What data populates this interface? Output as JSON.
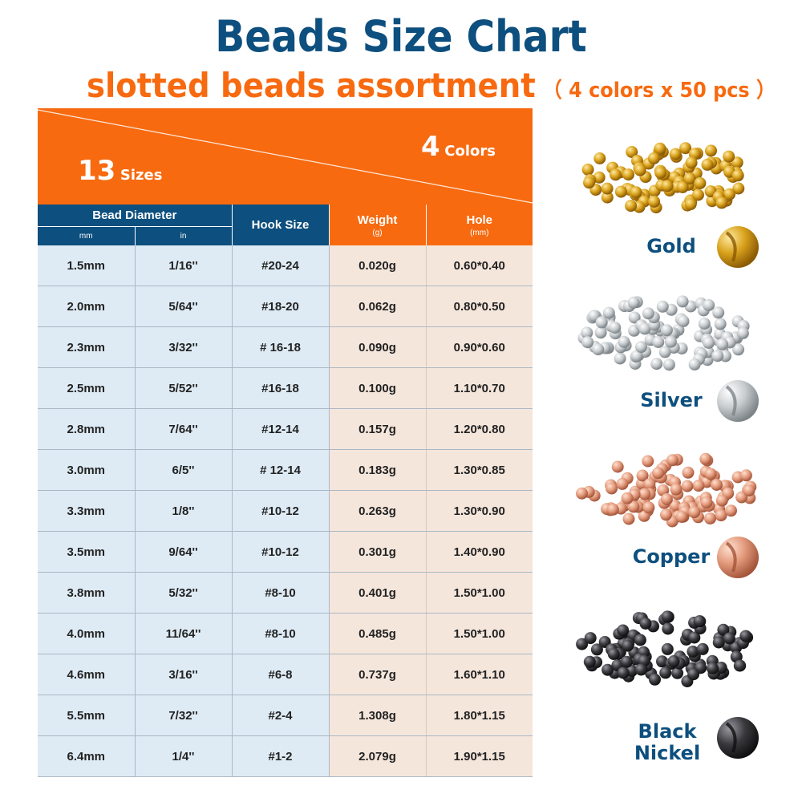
{
  "header": {
    "title": "Beads Size Chart",
    "subtitle": "slotted beads assortment",
    "subtitle_note": "（ 4 colors x 50 pcs ）"
  },
  "banner": {
    "sizes_count": "13",
    "sizes_label": "Sizes",
    "colors_count": "4",
    "colors_label": "Colors"
  },
  "table": {
    "bead_diameter_header": "Bead Diameter",
    "mm_header": "mm",
    "in_header": "in",
    "hook_size_header": "Hook Size",
    "weight_header": "Weight",
    "weight_unit": "(g)",
    "hole_header": "Hole",
    "hole_unit": "(mm)",
    "rows": [
      {
        "mm": "1.5mm",
        "in": "1/16''",
        "hook": "#20-24",
        "weight": "0.020g",
        "hole": "0.60*0.40"
      },
      {
        "mm": "2.0mm",
        "in": "5/64''",
        "hook": "#18-20",
        "weight": "0.062g",
        "hole": "0.80*0.50"
      },
      {
        "mm": "2.3mm",
        "in": "3/32''",
        "hook": "# 16-18",
        "weight": "0.090g",
        "hole": "0.90*0.60"
      },
      {
        "mm": "2.5mm",
        "in": "5/52''",
        "hook": "#16-18",
        "weight": "0.100g",
        "hole": "1.10*0.70"
      },
      {
        "mm": "2.8mm",
        "in": "7/64''",
        "hook": "#12-14",
        "weight": "0.157g",
        "hole": "1.20*0.80"
      },
      {
        "mm": "3.0mm",
        "in": "6/5''",
        "hook": "# 12-14",
        "weight": "0.183g",
        "hole": "1.30*0.85"
      },
      {
        "mm": "3.3mm",
        "in": "1/8''",
        "hook": "#10-12",
        "weight": "0.263g",
        "hole": "1.30*0.90"
      },
      {
        "mm": "3.5mm",
        "in": "9/64''",
        "hook": "#10-12",
        "weight": "0.301g",
        "hole": "1.40*0.90"
      },
      {
        "mm": "3.8mm",
        "in": "5/32''",
        "hook": "#8-10",
        "weight": "0.401g",
        "hole": "1.50*1.00"
      },
      {
        "mm": "4.0mm",
        "in": "11/64''",
        "hook": "#8-10",
        "weight": "0.485g",
        "hole": "1.50*1.00"
      },
      {
        "mm": "4.6mm",
        "in": "3/16''",
        "hook": "#6-8",
        "weight": "0.737g",
        "hole": "1.60*1.10"
      },
      {
        "mm": "5.5mm",
        "in": "7/32''",
        "hook": "#2-4",
        "weight": "1.308g",
        "hole": "1.80*1.15"
      },
      {
        "mm": "6.4mm",
        "in": "1/4''",
        "hook": "#1-2",
        "weight": "2.079g",
        "hole": "1.90*1.15"
      }
    ]
  },
  "beads": [
    {
      "name": "Gold",
      "icon": "gold-bead-icon",
      "base": "#d9a21c",
      "light": "#ffe9a0",
      "dark": "#8a5a05"
    },
    {
      "name": "Silver",
      "icon": "silver-bead-icon",
      "base": "#c9cdd0",
      "light": "#ffffff",
      "dark": "#7d8488"
    },
    {
      "name": "Copper",
      "icon": "copper-bead-icon",
      "base": "#e39a7c",
      "light": "#ffe0d0",
      "dark": "#a4553a"
    },
    {
      "name": "Black Nickel",
      "icon": "black-nickel-bead-icon",
      "base": "#3a3a3e",
      "light": "#9a9aa2",
      "dark": "#101012"
    }
  ],
  "colors": {
    "navy": "#0d4f7e",
    "orange": "#f76a10",
    "light_blue_cell": "#deebf5",
    "peach_cell": "#f5e6dc"
  }
}
